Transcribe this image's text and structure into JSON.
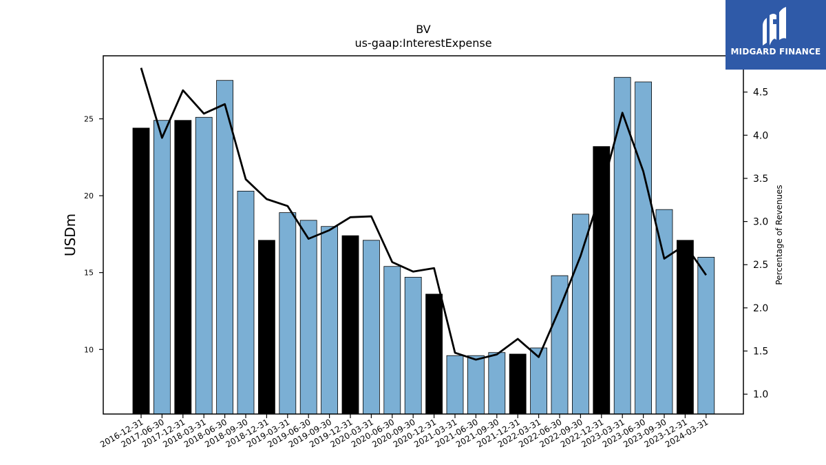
{
  "chart_data": {
    "type": "bar",
    "title": "BV",
    "subtitle": "us-gaap:InterestExpense",
    "ylabel": "USDm",
    "y2label": "Percentage of Revenues",
    "ylim": [
      5.8,
      29.1
    ],
    "y2lim": [
      0.77,
      4.92
    ],
    "yticks": [
      10,
      15,
      20,
      25
    ],
    "y2ticks": [
      1.0,
      1.5,
      2.0,
      2.5,
      3.0,
      3.5,
      4.0,
      4.5
    ],
    "categories": [
      "2016-12-31",
      "2017-06-30",
      "2017-12-31",
      "2018-03-31",
      "2018-06-30",
      "2018-09-30",
      "2018-12-31",
      "2019-03-31",
      "2019-06-30",
      "2019-09-30",
      "2019-12-31",
      "2020-03-31",
      "2020-06-30",
      "2020-09-30",
      "2020-12-31",
      "2021-03-31",
      "2021-06-30",
      "2021-09-30",
      "2021-12-31",
      "2022-03-31",
      "2022-06-30",
      "2022-09-30",
      "2022-12-31",
      "2023-03-31",
      "2023-06-30",
      "2023-09-30",
      "2023-12-31",
      "2024-03-31"
    ],
    "series": [
      {
        "type": "bar",
        "values": [
          24.4,
          24.9,
          24.9,
          25.1,
          27.5,
          20.3,
          17.1,
          18.9,
          18.4,
          18.0,
          17.4,
          17.1,
          15.4,
          14.7,
          13.6,
          9.6,
          9.6,
          9.8,
          9.7,
          10.1,
          14.8,
          18.8,
          23.2,
          27.7,
          27.4,
          19.1,
          17.1,
          16.0
        ],
        "colors": [
          "#000000",
          "#7bafd4",
          "#000000",
          "#7bafd4",
          "#7bafd4",
          "#7bafd4",
          "#000000",
          "#7bafd4",
          "#7bafd4",
          "#7bafd4",
          "#000000",
          "#7bafd4",
          "#7bafd4",
          "#7bafd4",
          "#000000",
          "#7bafd4",
          "#7bafd4",
          "#7bafd4",
          "#000000",
          "#7bafd4",
          "#7bafd4",
          "#7bafd4",
          "#000000",
          "#7bafd4",
          "#7bafd4",
          "#7bafd4",
          "#000000",
          "#7bafd4"
        ]
      },
      {
        "type": "line",
        "axis": "right",
        "color": "#000000",
        "values": [
          4.78,
          3.97,
          4.52,
          4.25,
          4.36,
          3.49,
          3.26,
          3.18,
          2.8,
          2.9,
          3.05,
          3.06,
          2.53,
          2.42,
          2.46,
          1.48,
          1.4,
          1.46,
          1.64,
          1.43,
          1.99,
          2.6,
          3.36,
          4.26,
          3.58,
          2.57,
          2.73,
          2.38
        ]
      }
    ],
    "grid": false,
    "legend": "none"
  },
  "logo": {
    "text": "MIDGARD FINANCE",
    "icon": "midgard-logo-icon",
    "background": "#2f5aa8"
  }
}
